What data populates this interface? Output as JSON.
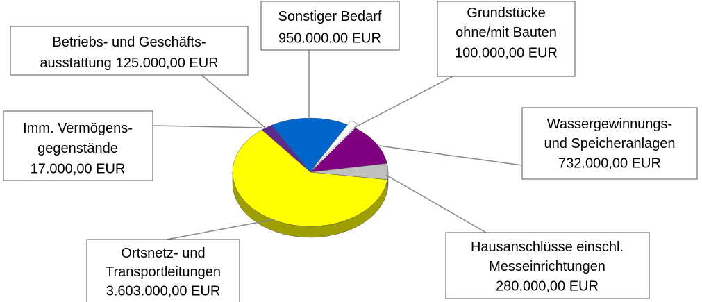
{
  "chart_data": {
    "type": "pie",
    "categories": [
      [
        "Imm. Vermögens-",
        "gegenstände"
      ],
      [
        "Betriebs- und Geschäfts-",
        "ausstattung"
      ],
      [
        "Sonstiger Bedarf"
      ],
      [
        "Grundstücke",
        "ohne/mit Bauten"
      ],
      [
        "Wassergewinnungs-",
        "und Speicheranlagen"
      ],
      [
        "Hausanschlüsse einschl.",
        "Messeinrichtungen"
      ],
      [
        "Ortsnetz- und",
        "Transportleitungen"
      ]
    ],
    "values": [
      17000,
      125000,
      950000,
      100000,
      732000,
      280000,
      3603000
    ],
    "value_labels": [
      "17.000,00 EUR",
      "125.000,00 EUR",
      "950.000,00 EUR",
      "100.000,00 EUR",
      "732.000,00 EUR",
      "280.000,00 EUR",
      "3.603.000,00 EUR"
    ],
    "colors": [
      "#800080",
      "#5a2a8c",
      "#0066cc",
      "#ffffff",
      "#800080",
      "#c0c0c0",
      "#ffff00"
    ]
  }
}
